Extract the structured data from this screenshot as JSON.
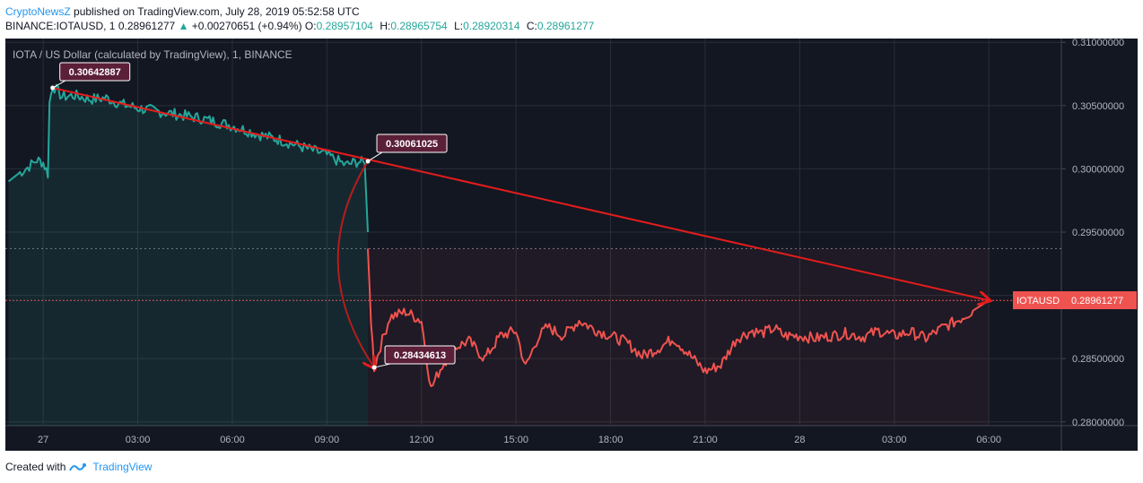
{
  "header": {
    "brand": "CryptoNewsZ",
    "published": "published on TradingView.com, July 28, 2019 05:52:58 UTC",
    "symbol": "BINANCE:IOTAUSD, 1",
    "last": "0.28961277",
    "change": "+0.00270651 (+0.94%)",
    "o_label": "O:",
    "o_value": "0.28957104",
    "h_label": "H:",
    "h_value": "0.28965754",
    "l_label": "L:",
    "l_value": "0.28920314",
    "c_label": "C:",
    "c_value": "0.28961277"
  },
  "footer": {
    "created": "Created with",
    "tv": "TradingView"
  },
  "colors": {
    "bg": "#131722",
    "up": "#26a69a",
    "down": "#ef5350",
    "trend": "#e51c1c",
    "callout": "#5b1f38",
    "grid": "#2a2e39",
    "text": "#b2b5be"
  },
  "chart_data": {
    "type": "line",
    "title": "IOTA / US Dollar (calculated by TradingView), 1, BINANCE",
    "x_ticks": [
      "27",
      "03:00",
      "06:00",
      "09:00",
      "12:00",
      "15:00",
      "18:00",
      "21:00",
      "28",
      "03:00",
      "06:00"
    ],
    "x_tick_hours": [
      0,
      3,
      6,
      9,
      12,
      15,
      18,
      21,
      24,
      27,
      30
    ],
    "xlim_hours": [
      -1.2,
      32.3
    ],
    "y_ticks": [
      "0.31000000",
      "0.30500000",
      "0.30000000",
      "0.29500000",
      "0.29000000",
      "0.28500000",
      "0.28000000"
    ],
    "ylim": [
      0.2797,
      0.3103
    ],
    "series": [
      {
        "color": "up",
        "points": [
          [
            -1.1,
            0.299
          ],
          [
            -0.8,
            0.2996
          ],
          [
            -0.5,
            0.3001
          ],
          [
            -0.2,
            0.3007
          ],
          [
            0.0,
            0.3005
          ],
          [
            0.15,
            0.2996
          ],
          [
            0.2,
            0.3052
          ],
          [
            0.3,
            0.3066
          ],
          [
            0.6,
            0.3057
          ],
          [
            1.0,
            0.3058
          ],
          [
            1.5,
            0.3055
          ],
          [
            2.0,
            0.3056
          ],
          [
            2.5,
            0.3051
          ],
          [
            3.0,
            0.3048
          ],
          [
            3.5,
            0.3046
          ],
          [
            4.0,
            0.3044
          ],
          [
            4.5,
            0.3042
          ],
          [
            5.0,
            0.304
          ],
          [
            5.5,
            0.3037
          ],
          [
            6.0,
            0.3034
          ],
          [
            6.5,
            0.303
          ],
          [
            7.0,
            0.3026
          ],
          [
            7.5,
            0.3023
          ],
          [
            8.0,
            0.3019
          ],
          [
            8.5,
            0.3015
          ],
          [
            9.0,
            0.3011
          ],
          [
            9.3,
            0.3007
          ],
          [
            9.6,
            0.3003
          ],
          [
            10.0,
            0.3006
          ],
          [
            10.2,
            0.3004
          ],
          [
            10.3,
            0.295
          ]
        ]
      },
      {
        "color": "down",
        "points": [
          [
            10.3,
            0.2937
          ],
          [
            10.4,
            0.288
          ],
          [
            10.5,
            0.2843
          ],
          [
            10.7,
            0.286
          ],
          [
            11.0,
            0.2883
          ],
          [
            11.5,
            0.2887
          ],
          [
            12.0,
            0.288
          ],
          [
            12.3,
            0.2826
          ],
          [
            12.6,
            0.2842
          ],
          [
            13.0,
            0.2858
          ],
          [
            13.5,
            0.2864
          ],
          [
            14.0,
            0.285
          ],
          [
            14.5,
            0.2868
          ],
          [
            15.0,
            0.2872
          ],
          [
            15.3,
            0.2843
          ],
          [
            15.7,
            0.2867
          ],
          [
            16.0,
            0.2875
          ],
          [
            16.5,
            0.2868
          ],
          [
            17.0,
            0.288
          ],
          [
            17.5,
            0.2873
          ],
          [
            18.0,
            0.2868
          ],
          [
            18.5,
            0.2863
          ],
          [
            19.0,
            0.2852
          ],
          [
            19.5,
            0.2858
          ],
          [
            20.0,
            0.2866
          ],
          [
            20.5,
            0.2853
          ],
          [
            21.0,
            0.284
          ],
          [
            21.5,
            0.2845
          ],
          [
            22.0,
            0.2866
          ],
          [
            22.5,
            0.2872
          ],
          [
            22.8,
            0.287
          ],
          [
            23.2,
            0.2874
          ],
          [
            23.5,
            0.2868
          ],
          [
            24.0,
            0.2868
          ],
          [
            24.5,
            0.2866
          ],
          [
            25.0,
            0.2868
          ],
          [
            25.5,
            0.287
          ],
          [
            26.0,
            0.2867
          ],
          [
            26.5,
            0.2872
          ],
          [
            27.0,
            0.2868
          ],
          [
            27.5,
            0.2871
          ],
          [
            28.0,
            0.2866
          ],
          [
            28.5,
            0.2874
          ],
          [
            29.0,
            0.288
          ],
          [
            29.5,
            0.2888
          ],
          [
            30.0,
            0.2896
          ]
        ]
      }
    ],
    "callouts": [
      {
        "label": "0.30642887",
        "x": 0.3,
        "y": 0.3064
      },
      {
        "label": "0.30061025",
        "x": 10.3,
        "y": 0.3006
      },
      {
        "label": "0.28434613",
        "x": 10.5,
        "y": 0.2843
      }
    ],
    "current_price_label": "IOTAUSD",
    "current_price": "0.28961277",
    "trend_line": {
      "from": [
        0.3,
        0.3064
      ],
      "to": [
        30.0,
        0.2896
      ]
    },
    "dotted_level": 0.2937,
    "dotted_level_red": 0.2896
  }
}
